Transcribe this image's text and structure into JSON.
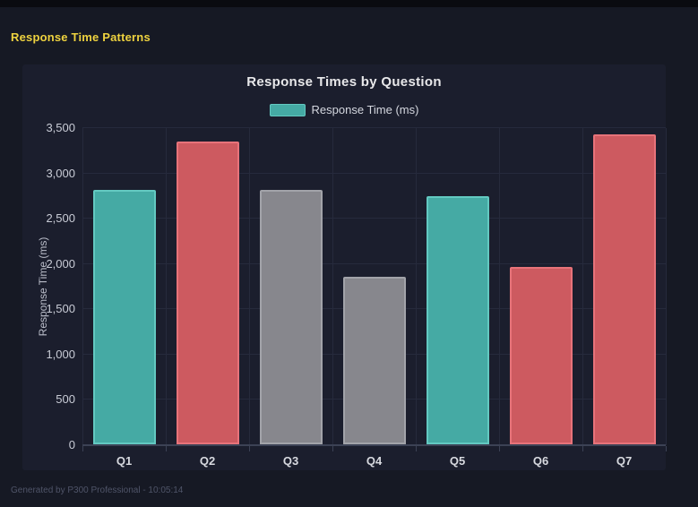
{
  "header": {
    "title": "Response Time Patterns"
  },
  "footer": {
    "text": "Generated by P300 Professional - 10:05:14"
  },
  "colors": {
    "page_bg": "#161924",
    "topbar_bg": "#0a0b10",
    "panel_bg": "#1b1e2d",
    "accent_yellow": "#eed23f",
    "title_text": "#e8e8ea",
    "tick_text": "#c9ccd6",
    "gridline": "#262a3c",
    "axis": "#3c4255",
    "footer_text": "#4f5468",
    "teal": "#45aaa4",
    "teal_border": "#63c9c1",
    "red": "#cd5a60",
    "red_border": "#e7737a",
    "gray": "#87878d",
    "gray_border": "#a2a3a9"
  },
  "chart_data": {
    "type": "bar",
    "title": "Response Times by Question",
    "legend": [
      "Response Time (ms)"
    ],
    "legend_color": "teal",
    "legend_position": "top",
    "categories": [
      "Q1",
      "Q2",
      "Q3",
      "Q4",
      "Q5",
      "Q6",
      "Q7"
    ],
    "values": [
      2810,
      3340,
      2810,
      1845,
      2735,
      1955,
      3420
    ],
    "bar_colors": [
      "teal",
      "red",
      "gray",
      "gray",
      "teal",
      "red",
      "red"
    ],
    "xlabel": "",
    "ylabel": "Response Time (ms)",
    "ylim": [
      0,
      3500
    ],
    "ytick_step": 500,
    "ytick_labels": [
      "0",
      "500",
      "1,000",
      "1,500",
      "2,000",
      "2,500",
      "3,000",
      "3,500"
    ],
    "grid": true
  }
}
